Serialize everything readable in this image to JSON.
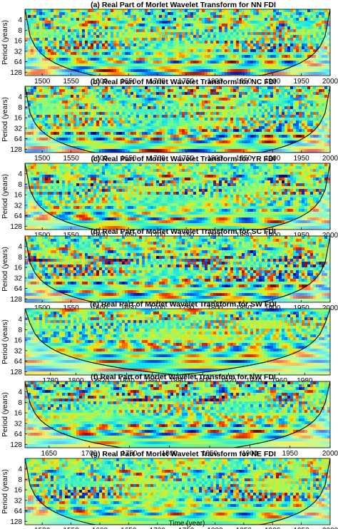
{
  "figure": {
    "xlabel": "Time (year)"
  },
  "chart_data": [
    {
      "type": "heatmap",
      "title": "(a) Real Part of Morlet Wavelet Transform for NN FDI",
      "ylabel": "Period (years)",
      "yticks": [
        4,
        8,
        16,
        32,
        64,
        128
      ],
      "ylim": [
        2,
        160
      ],
      "yscale": "log2",
      "xlim": [
        1470,
        2000
      ],
      "xticks": [
        1500,
        1550,
        1600,
        1650,
        1700,
        1750,
        1800,
        1850,
        1900,
        1950,
        2000
      ],
      "colormap": [
        "#00008f",
        "#0060ff",
        "#00e0ff",
        "#80ff80",
        "#ffe000",
        "#ff3000",
        "#800000"
      ],
      "cone_of_influence": true
    },
    {
      "type": "heatmap",
      "title": "(b) Real Part of Morlet Wavelet Transform for NC FDI",
      "ylabel": "Period (years)",
      "yticks": [
        4,
        8,
        16,
        32,
        64,
        128
      ],
      "ylim": [
        2,
        160
      ],
      "yscale": "log2",
      "xlim": [
        1470,
        2000
      ],
      "xticks": [
        1500,
        1550,
        1600,
        1650,
        1700,
        1750,
        1800,
        1850,
        1900,
        1950,
        2000
      ],
      "cone_of_influence": true
    },
    {
      "type": "heatmap",
      "title": "(c) Real Part of Morlet Wavelet Transform for YR FDI",
      "ylabel": "Period (years)",
      "yticks": [
        4,
        8,
        16,
        32,
        64,
        128
      ],
      "ylim": [
        2,
        160
      ],
      "yscale": "log2",
      "xlim": [
        1470,
        2000
      ],
      "xticks": [
        1500,
        1550,
        1600,
        1650,
        1700,
        1750,
        1800,
        1850,
        1900,
        1950,
        2000
      ],
      "cone_of_influence": true
    },
    {
      "type": "heatmap",
      "title": "(d) Real Part of Morlet Wavelet Transform for SC FDI",
      "ylabel": "Period (years)",
      "yticks": [
        4,
        8,
        16,
        32,
        64,
        128
      ],
      "ylim": [
        2,
        160
      ],
      "yscale": "log2",
      "xlim": [
        1470,
        2000
      ],
      "xticks": [
        1500,
        1550,
        1600,
        1650,
        1700,
        1750,
        1800,
        1850,
        1900,
        1950,
        2000
      ],
      "cone_of_influence": true
    },
    {
      "type": "heatmap",
      "title": "(e) Real Part of Morlet Wavelet Transform for SW FDI",
      "ylabel": "Period (years)",
      "yticks": [
        4,
        8,
        16,
        32,
        64,
        128
      ],
      "ylim": [
        2,
        160
      ],
      "yscale": "log2",
      "xlim": [
        1760,
        2000
      ],
      "xticks": [
        1780,
        1800,
        1820,
        1840,
        1860,
        1880,
        1900,
        1920,
        1940,
        1960,
        1980
      ],
      "cone_of_influence": true
    },
    {
      "type": "heatmap",
      "title": "(f) Real Part of Morlet Wavelet Transform for NW FDI",
      "ylabel": "Period (years)",
      "yticks": [
        4,
        8,
        16,
        32,
        64,
        128
      ],
      "ylim": [
        2,
        160
      ],
      "yscale": "log2",
      "xlim": [
        1620,
        2000
      ],
      "xticks": [
        1650,
        1700,
        1750,
        1800,
        1850,
        1900,
        1950,
        2000
      ],
      "cone_of_influence": true
    },
    {
      "type": "heatmap",
      "title": "(g) Real Part of Morlet Wavelet Transform for NE FDI",
      "ylabel": "Period (years)",
      "yticks": [
        4,
        8,
        16,
        32,
        64,
        128
      ],
      "ylim": [
        2,
        160
      ],
      "yscale": "log2",
      "xlim": [
        1470,
        2000
      ],
      "xticks": [
        1500,
        1550,
        1600,
        1650,
        1700,
        1750,
        1800,
        1850,
        1900,
        1950,
        2000
      ],
      "cone_of_influence": true
    }
  ]
}
